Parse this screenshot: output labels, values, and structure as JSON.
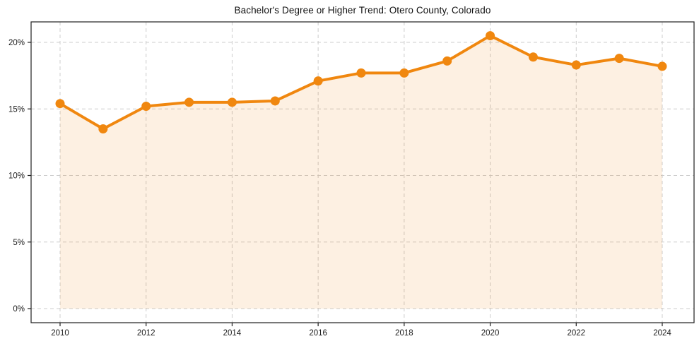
{
  "chart_data": {
    "type": "area",
    "title": "Bachelor's Degree or Higher Trend: Otero County, Colorado",
    "xlabel": "",
    "ylabel": "",
    "x": [
      2010,
      2011,
      2012,
      2013,
      2014,
      2015,
      2016,
      2017,
      2018,
      2019,
      2020,
      2021,
      2022,
      2023,
      2024
    ],
    "values": [
      15.4,
      13.5,
      15.2,
      15.5,
      15.5,
      15.6,
      17.1,
      17.7,
      17.7,
      18.6,
      20.5,
      18.9,
      18.3,
      18.8,
      18.2
    ],
    "unit": "%",
    "ylim": [
      0,
      21.5
    ],
    "xlim": [
      2009.3,
      2024.75
    ],
    "grid": true,
    "grid_style": "dashed",
    "legend": false,
    "marker": "circle",
    "y_ticks": [
      {
        "value": 0,
        "label": "0%"
      },
      {
        "value": 5,
        "label": "5%"
      },
      {
        "value": 10,
        "label": "10%"
      },
      {
        "value": 15,
        "label": "15%"
      },
      {
        "value": 20,
        "label": "20%"
      }
    ],
    "x_ticks": [
      {
        "value": 2010,
        "label": "2010"
      },
      {
        "value": 2012,
        "label": "2012"
      },
      {
        "value": 2014,
        "label": "2014"
      },
      {
        "value": 2016,
        "label": "2016"
      },
      {
        "value": 2018,
        "label": "2018"
      },
      {
        "value": 2020,
        "label": "2020"
      },
      {
        "value": 2022,
        "label": "2022"
      },
      {
        "value": 2024,
        "label": "2024"
      }
    ],
    "colors": {
      "line": "#F0870F",
      "marker": "#F0870F",
      "fill": "#F0870F",
      "fill_opacity": 0.12,
      "grid": "#CCCCCC",
      "frame": "#1F1F1F",
      "tick_text": "#1A1A1A",
      "background": "#FFFFFF"
    }
  }
}
